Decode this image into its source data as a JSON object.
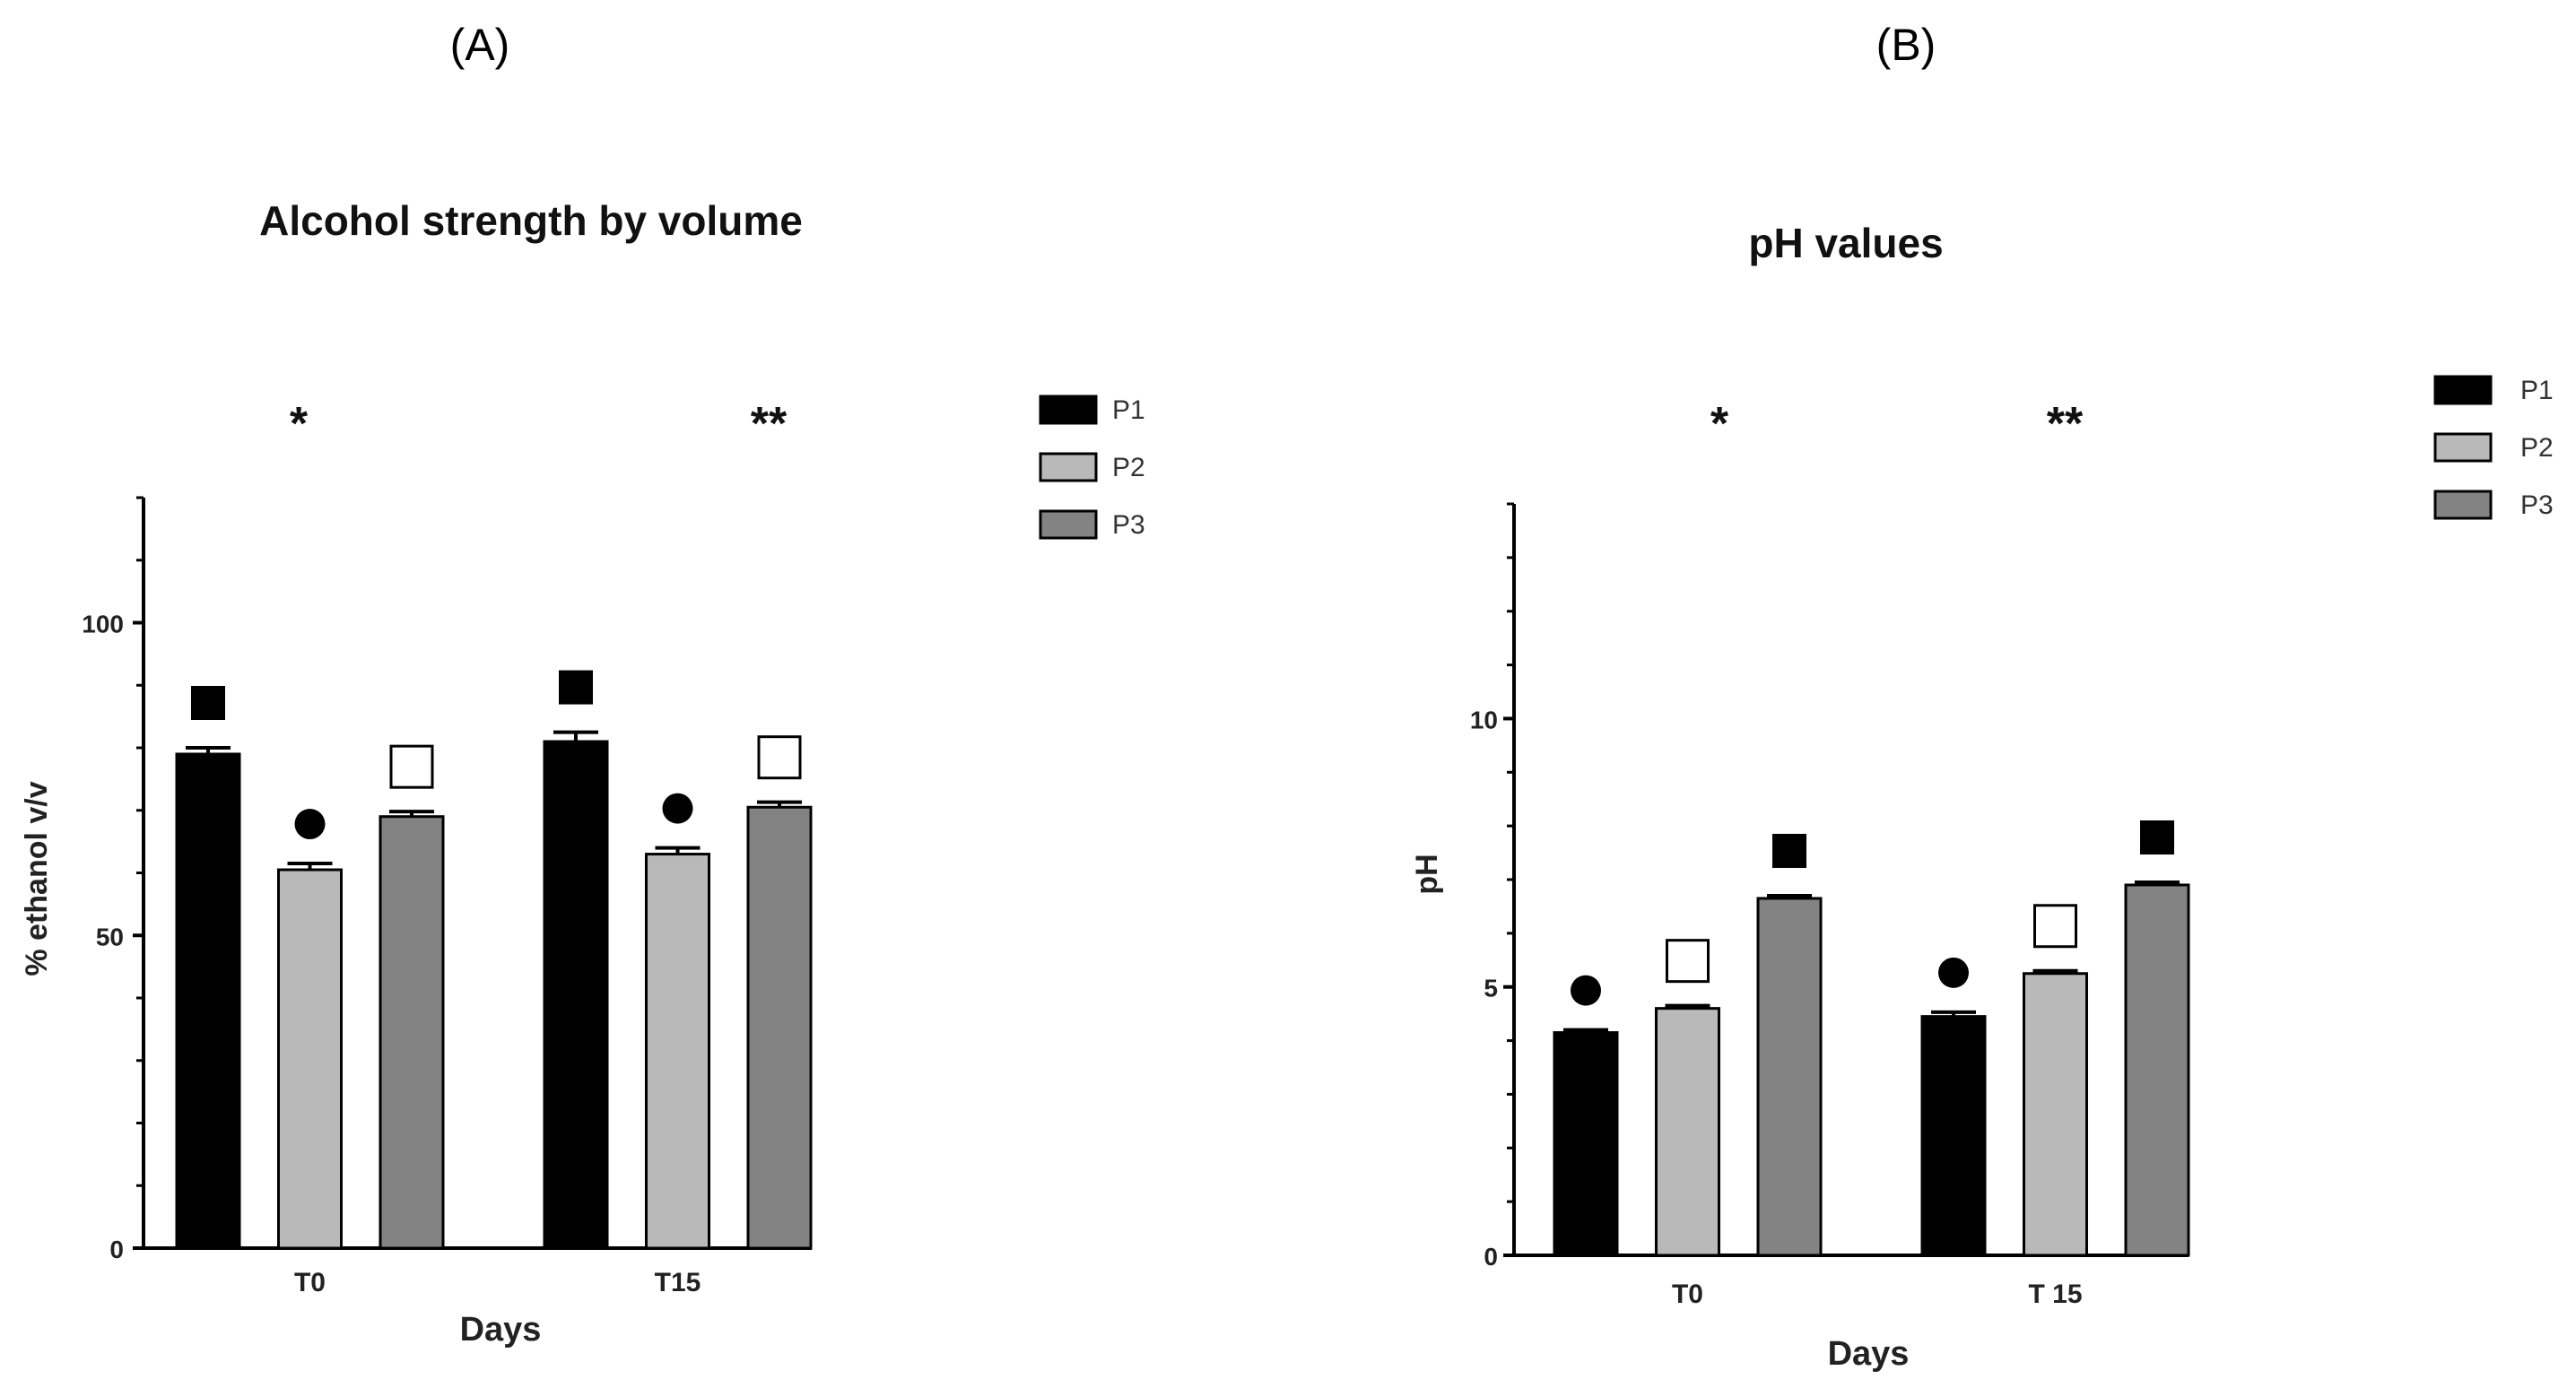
{
  "chart_data": [
    {
      "type": "bar",
      "panel_label": "(A)",
      "title": "Alcohol strength by volume",
      "xlabel": "Days",
      "ylabel": "% ethanol v/v",
      "categories": [
        "T0",
        "T15"
      ],
      "ylim": [
        0,
        120
      ],
      "yticks": [
        0,
        50,
        100
      ],
      "series": [
        {
          "name": "P1",
          "color": "#000000",
          "values": [
            79,
            81
          ],
          "errors": [
            1,
            1.5
          ],
          "markers": [
            "filled-square",
            "filled-square"
          ]
        },
        {
          "name": "P2",
          "color": "#b9b9b9",
          "values": [
            60.5,
            63
          ],
          "errors": [
            1,
            1
          ],
          "markers": [
            "filled-circle",
            "filled-circle"
          ]
        },
        {
          "name": "P3",
          "color": "#838383",
          "values": [
            69,
            70.5
          ],
          "errors": [
            0.8,
            0.8
          ],
          "markers": [
            "open-square",
            "open-square"
          ]
        }
      ],
      "significance": [
        "*",
        "**"
      ],
      "legend": "right"
    },
    {
      "type": "bar",
      "panel_label": "(B)",
      "title": "pH values",
      "xlabel": "Days",
      "ylabel": "pH",
      "categories": [
        "T0",
        "T 15"
      ],
      "ylim": [
        0,
        14
      ],
      "yticks": [
        0,
        5,
        10
      ],
      "series": [
        {
          "name": "P1",
          "color": "#000000",
          "values": [
            4.15,
            4.45
          ],
          "errors": [
            0.05,
            0.08
          ],
          "markers": [
            "filled-circle",
            "filled-circle"
          ]
        },
        {
          "name": "P2",
          "color": "#b9b9b9",
          "values": [
            4.6,
            5.25
          ],
          "errors": [
            0.05,
            0.05
          ],
          "markers": [
            "open-square",
            "open-square"
          ]
        },
        {
          "name": "P3",
          "color": "#838383",
          "values": [
            6.65,
            6.9
          ],
          "errors": [
            0.05,
            0.05
          ],
          "markers": [
            "filled-square",
            "filled-square"
          ]
        }
      ],
      "significance": [
        "*",
        "**"
      ],
      "legend": "right"
    }
  ]
}
